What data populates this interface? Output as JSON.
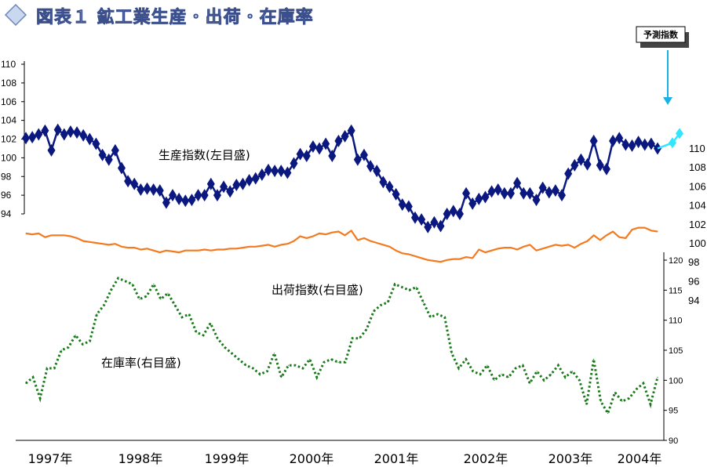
{
  "header": {
    "title": "図表１ 鉱工業生産・出荷・在庫率",
    "icon": "diamond-icon"
  },
  "callout": {
    "label": "予測指数"
  },
  "chart_data": {
    "type": "line",
    "title": "図表１ 鉱工業生産・出荷・在庫率",
    "x": {
      "categories": [
        "1997年",
        "1998年",
        "1999年",
        "2000年",
        "2001年",
        "2002年",
        "2003年",
        "2004年"
      ]
    },
    "axes": {
      "left_production": {
        "ticks": [
          "110",
          "108",
          "106",
          "104",
          "102",
          "100",
          "98",
          "96",
          "94"
        ],
        "range": [
          94,
          110
        ]
      },
      "right_production_scale": {
        "ticks": [
          "110",
          "108",
          "106",
          "104",
          "102",
          "100"
        ]
      },
      "right_shipment": {
        "ticks": [
          "98",
          "96",
          "94"
        ]
      },
      "right_inventory": {
        "ticks": [
          "120",
          "115",
          "110",
          "105",
          "100",
          "95",
          "90"
        ],
        "range": [
          90,
          120
        ]
      }
    },
    "colors": {
      "production": "#0a1880",
      "shipment": "#f47a1f",
      "inventory": "#1a7a1a",
      "forecast": "#33e6ff",
      "arrow": "#1ab2e6"
    },
    "series": [
      {
        "name": "生産指数(左目盛)",
        "axis": "left",
        "values": [
          102.1,
          102.2,
          102.5,
          102.9,
          100.8,
          103.0,
          102.5,
          102.8,
          102.7,
          102.4,
          102.0,
          101.5,
          100.3,
          99.8,
          100.8,
          98.9,
          97.5,
          97.2,
          96.6,
          96.7,
          96.6,
          96.5,
          95.2,
          96.0,
          95.6,
          95.4,
          95.5,
          96.0,
          96.0,
          97.2,
          96.0,
          96.9,
          96.4,
          97.1,
          97.2,
          97.6,
          97.8,
          98.2,
          98.7,
          98.6,
          98.6,
          98.4,
          99.4,
          100.4,
          100.2,
          101.2,
          101.0,
          101.5,
          100.2,
          101.8,
          102.3,
          102.9,
          99.8,
          100.3,
          99.1,
          98.6,
          97.4,
          96.9,
          96.1,
          95.0,
          94.8,
          93.6,
          93.4,
          92.6,
          93.1,
          92.7,
          94.0,
          94.3,
          94.0,
          96.2,
          95.1,
          95.6,
          95.8,
          96.4,
          96.6,
          96.2,
          96.2,
          97.3,
          96.2,
          96.2,
          95.5,
          96.8,
          96.3,
          96.5,
          96.0,
          98.3,
          99.2,
          99.8,
          99.3,
          101.8,
          99.2,
          98.8,
          101.8,
          102.1,
          101.4,
          101.3,
          101.7,
          101.4,
          101.5,
          101.0
        ]
      },
      {
        "name": "予測指数",
        "axis": "left",
        "values": [
          101.6,
          102.6
        ]
      },
      {
        "name": "出荷指数(右目盛)",
        "axis": "right",
        "values": [
          101.0,
          100.9,
          101.0,
          100.6,
          100.8,
          100.8,
          100.8,
          100.7,
          100.5,
          100.2,
          100.1,
          100.0,
          99.9,
          99.8,
          99.9,
          99.6,
          99.5,
          99.5,
          99.3,
          99.4,
          99.2,
          99.0,
          99.2,
          99.1,
          99.0,
          99.2,
          99.2,
          99.2,
          99.3,
          99.2,
          99.3,
          99.3,
          99.4,
          99.4,
          99.5,
          99.6,
          99.6,
          99.7,
          99.8,
          99.6,
          99.8,
          99.9,
          100.2,
          100.7,
          100.5,
          100.7,
          101.0,
          100.9,
          101.1,
          101.2,
          100.8,
          101.3,
          100.3,
          100.5,
          100.2,
          100.0,
          99.8,
          99.6,
          99.2,
          98.9,
          98.8,
          98.6,
          98.4,
          98.2,
          98.1,
          98.0,
          98.2,
          98.3,
          98.3,
          98.5,
          98.4,
          99.3,
          99.0,
          99.2,
          99.4,
          99.5,
          99.5,
          99.3,
          99.6,
          99.8,
          99.2,
          99.4,
          99.6,
          99.8,
          99.7,
          99.8,
          99.5,
          99.9,
          100.2,
          100.8,
          100.3,
          100.8,
          101.2,
          100.6,
          100.5,
          101.4,
          101.6,
          101.6,
          101.3,
          101.2
        ]
      },
      {
        "name": "在庫率(右目盛)",
        "axis": "right",
        "values": [
          99.5,
          100.5,
          97.0,
          102.0,
          102.0,
          105.0,
          105.5,
          107.5,
          106.0,
          106.5,
          111.0,
          112.5,
          115.0,
          117.0,
          116.5,
          116.0,
          113.5,
          114.0,
          116.0,
          113.5,
          114.5,
          112.5,
          110.5,
          111.0,
          108.0,
          107.5,
          109.5,
          107.0,
          105.5,
          104.5,
          103.5,
          102.5,
          102.0,
          101.0,
          101.5,
          104.5,
          100.5,
          102.5,
          102.5,
          102.0,
          103.5,
          100.5,
          103.0,
          103.5,
          103.0,
          103.0,
          107.0,
          107.0,
          108.5,
          111.5,
          112.5,
          113.0,
          116.0,
          115.5,
          115.0,
          115.5,
          113.0,
          110.5,
          111.0,
          110.5,
          104.5,
          102.0,
          103.5,
          101.5,
          101.0,
          102.5,
          100.0,
          101.0,
          100.5,
          102.0,
          102.5,
          99.5,
          101.5,
          100.0,
          101.0,
          102.5,
          100.5,
          101.5,
          100.0,
          96.0,
          103.5,
          96.5,
          94.5,
          98.0,
          96.5,
          97.0,
          98.5,
          99.5,
          96.0,
          100.5
        ]
      }
    ],
    "series_labels": [
      "生産指数(左目盛)",
      "出荷指数(右目盛)",
      "在庫率(右目盛)"
    ],
    "grid": false,
    "legend": "inline labels"
  }
}
